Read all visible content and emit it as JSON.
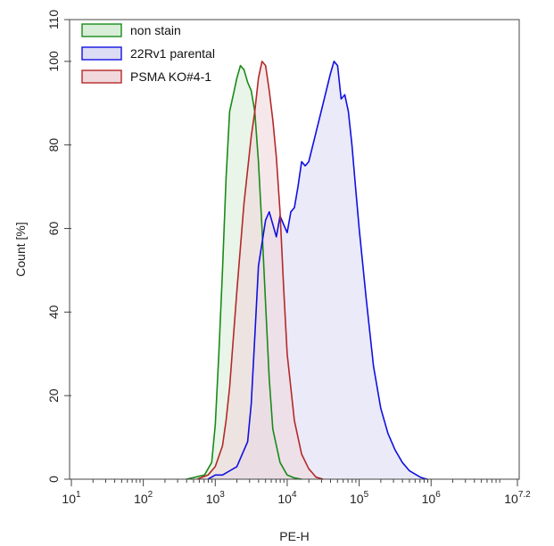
{
  "chart_data": {
    "type": "area",
    "xlabel": "PE-H",
    "ylabel": "Count [%]",
    "x_scale": "log",
    "xlim": [
      1,
      7.2
    ],
    "ylim": [
      0,
      110
    ],
    "x_ticks": [
      {
        "base": "10",
        "exp": "1",
        "value": 1
      },
      {
        "base": "10",
        "exp": "2",
        "value": 2
      },
      {
        "base": "10",
        "exp": "3",
        "value": 3
      },
      {
        "base": "10",
        "exp": "4",
        "value": 4
      },
      {
        "base": "10",
        "exp": "5",
        "value": 5
      },
      {
        "base": "10",
        "exp": "6",
        "value": 6
      },
      {
        "base": "10",
        "exp": "7.2",
        "value": 7.2
      }
    ],
    "y_ticks": [
      "0",
      "20",
      "40",
      "60",
      "80",
      "100",
      "110"
    ],
    "y_tick_values": [
      0,
      20,
      40,
      60,
      80,
      100,
      110
    ],
    "grid": false,
    "legend_position": "top-left",
    "series": [
      {
        "name": "non stain",
        "line_color": "#1a8a1a",
        "fill_color": "#d8eed8",
        "x_log10": [
          2.6,
          2.85,
          2.95,
          3.0,
          3.05,
          3.1,
          3.15,
          3.2,
          3.25,
          3.3,
          3.35,
          3.4,
          3.45,
          3.5,
          3.55,
          3.6,
          3.65,
          3.7,
          3.75,
          3.8,
          3.9,
          4.0,
          4.1,
          4.2
        ],
        "y": [
          0,
          1,
          4,
          13,
          30,
          50,
          72,
          88,
          92,
          96,
          99,
          98,
          95,
          93,
          88,
          76,
          60,
          42,
          24,
          12,
          4,
          1,
          0.3,
          0
        ]
      },
      {
        "name": "22Rv1 parental",
        "line_color": "#1010e0",
        "fill_color": "#dcdcf5",
        "x_log10": [
          2.9,
          3.0,
          3.1,
          3.3,
          3.45,
          3.5,
          3.55,
          3.6,
          3.7,
          3.75,
          3.8,
          3.85,
          3.9,
          4.0,
          4.05,
          4.1,
          4.15,
          4.2,
          4.25,
          4.3,
          4.4,
          4.5,
          4.6,
          4.65,
          4.7,
          4.75,
          4.8,
          4.85,
          4.9,
          4.95,
          5.0,
          5.1,
          5.2,
          5.3,
          5.4,
          5.5,
          5.6,
          5.7,
          5.8,
          5.85,
          5.9,
          5.95
        ],
        "y": [
          0,
          1,
          1,
          3,
          9,
          18,
          34,
          51,
          62,
          64,
          61,
          58,
          63,
          59,
          64,
          65,
          70,
          76,
          75,
          76,
          83,
          90,
          97,
          100,
          99,
          91,
          92,
          88,
          80,
          70,
          60,
          43,
          27,
          17,
          11,
          7,
          4,
          2,
          1,
          0.5,
          0.2,
          0
        ]
      },
      {
        "name": "PSMA KO#4-1",
        "line_color": "#b52828",
        "fill_color": "#f0d8dc",
        "x_log10": [
          2.75,
          2.9,
          3.0,
          3.1,
          3.15,
          3.2,
          3.3,
          3.4,
          3.5,
          3.55,
          3.6,
          3.65,
          3.7,
          3.75,
          3.8,
          3.85,
          3.9,
          3.95,
          4.0,
          4.1,
          4.2,
          4.3,
          4.35,
          4.4,
          4.5
        ],
        "y": [
          0,
          1,
          3,
          8,
          14,
          22,
          45,
          66,
          82,
          88,
          96,
          100,
          99,
          93,
          86,
          77,
          64,
          46,
          30,
          14,
          6,
          2.5,
          1.5,
          0.5,
          0
        ]
      }
    ]
  }
}
